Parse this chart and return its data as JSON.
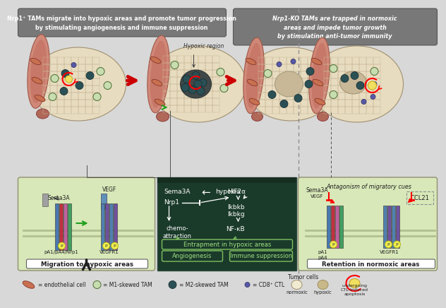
{
  "bg_color": "#d8d8d8",
  "left_header": "Nrp1⁺ TAMs migrate into hypoxic areas and promote tumor progression\nby stimulating angiogenesis and immune suppression",
  "right_header": "Nrp1-KO TAMs are trapped in normoxic\nareas and impede tumor growth\nby stimulating anti-tumor immunity",
  "left_box_label": "Migration to hypoxic areas",
  "center_box_label1": "Angiogenesis",
  "center_box_label2": "Immune suppression",
  "right_box_label": "Retention in normoxic areas",
  "center_entrapment": "Entrapment in hypoxic areas",
  "antagonism_label": "Antagonism of migratory cues",
  "center_box_bg": "#1a3a2a",
  "left_box_bg": "#d8e8b8",
  "right_box_bg": "#d8e8b8",
  "left_header_bg": "#787878",
  "right_header_bg": "#787878"
}
